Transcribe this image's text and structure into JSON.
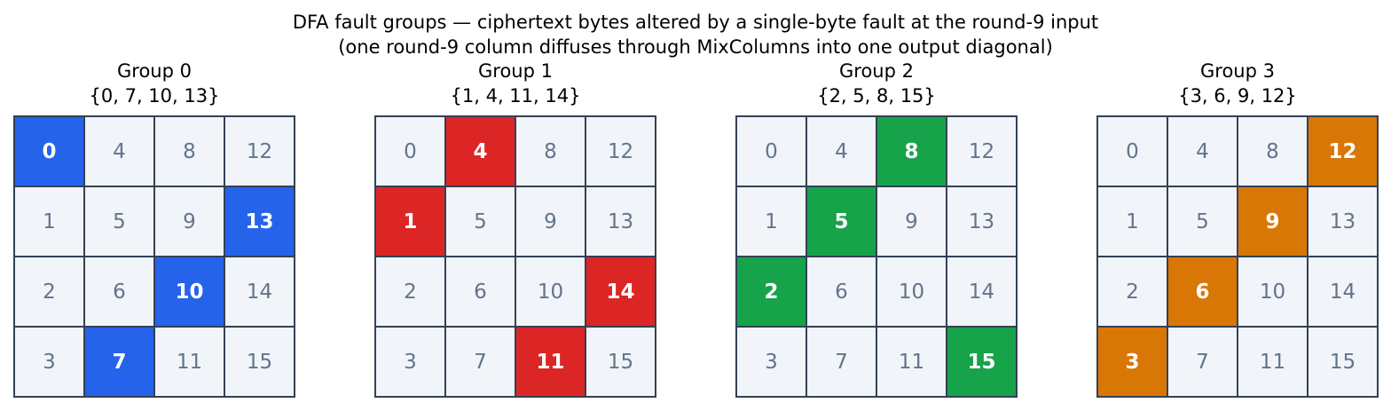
{
  "title_line1": "DFA fault groups — ciphertext bytes altered by a single-byte fault at the round-9 input",
  "title_line2": "(one round-9 column diffuses through MixColumns into one output diagonal)",
  "grid_rows": [
    [
      "0",
      "4",
      "8",
      "12"
    ],
    [
      "1",
      "5",
      "9",
      "13"
    ],
    [
      "2",
      "6",
      "10",
      "14"
    ],
    [
      "3",
      "7",
      "11",
      "15"
    ]
  ],
  "groups": [
    {
      "title": "Group 0",
      "set": "{0, 7, 10, 13}",
      "color": "#2563eb",
      "bytes": [
        0,
        7,
        10,
        13
      ]
    },
    {
      "title": "Group 1",
      "set": "{1, 4, 11, 14}",
      "color": "#dc2626",
      "bytes": [
        1,
        4,
        11,
        14
      ]
    },
    {
      "title": "Group 2",
      "set": "{2, 5, 8, 15}",
      "color": "#16a34a",
      "bytes": [
        2,
        5,
        8,
        15
      ]
    },
    {
      "title": "Group 3",
      "set": "{3, 6, 9, 12}",
      "color": "#d97706",
      "bytes": [
        3,
        6,
        9,
        12
      ]
    }
  ]
}
